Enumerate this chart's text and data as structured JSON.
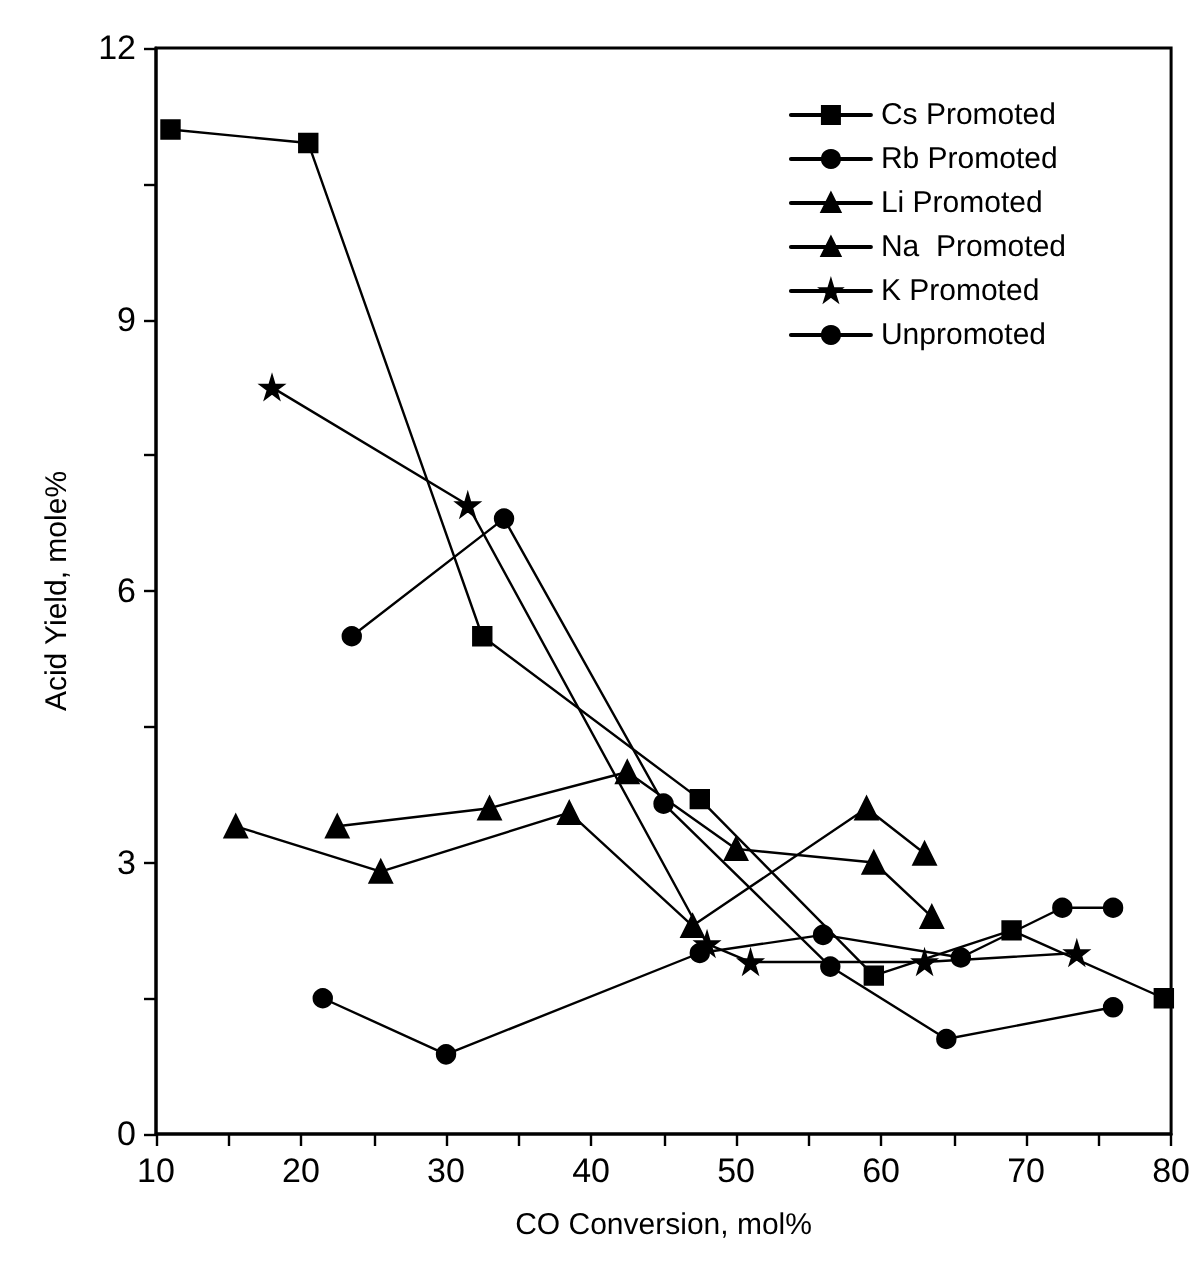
{
  "chart_data": {
    "type": "line",
    "xlabel": "CO Conversion, mol%",
    "ylabel": "Acid Yield, mole%",
    "xlim": [
      10,
      80
    ],
    "ylim": [
      0,
      12
    ],
    "xticks": [
      10,
      {
        "value": 15,
        "label": null
      },
      20,
      {
        "value": 25,
        "label": null
      },
      30,
      {
        "value": 35,
        "label": null
      },
      40,
      {
        "value": 45,
        "label": null
      },
      50,
      {
        "value": 55,
        "label": null
      },
      60,
      {
        "value": 65,
        "label": null
      },
      70,
      {
        "value": 75,
        "label": null
      },
      80
    ],
    "yticks": [
      0,
      {
        "value": 1.5,
        "label": null
      },
      3,
      {
        "value": 4.5,
        "label": null
      },
      6,
      {
        "value": 7.5,
        "label": null
      },
      9,
      {
        "value": 10.5,
        "label": null
      },
      12
    ],
    "grid": false,
    "legend": "top right",
    "line_style": "solid",
    "series": [
      {
        "name": "Cs Promoted",
        "color": "#000000",
        "marker": "square",
        "x": [
          11,
          20.5,
          32.5,
          47.5,
          59.5,
          69,
          79.5
        ],
        "values": [
          11.1,
          10.95,
          5.5,
          3.7,
          1.75,
          2.25,
          1.5
        ]
      },
      {
        "name": "Rb Promoted",
        "color": "#000000",
        "marker": "circle",
        "x": [
          23.5,
          34,
          45,
          56.5,
          64.5,
          76
        ],
        "values": [
          5.5,
          6.8,
          3.65,
          1.85,
          1.05,
          1.4
        ]
      },
      {
        "name": "Li Promoted",
        "color": "#000000",
        "marker": "triangle",
        "x": [
          15.5,
          25.5,
          38.5,
          47,
          59,
          63
        ],
        "values": [
          3.4,
          2.9,
          3.55,
          2.3,
          3.6,
          3.1
        ]
      },
      {
        "name": "Na  Promoted",
        "color": "#000000",
        "marker": "triangle",
        "x": [
          22.5,
          33,
          42.5,
          50,
          59.5,
          63.5
        ],
        "values": [
          3.4,
          3.6,
          4.0,
          3.15,
          3.0,
          2.4
        ]
      },
      {
        "name": "K Promoted",
        "color": "#000000",
        "marker": "star",
        "x": [
          18,
          31.5,
          48,
          51,
          63,
          73.5
        ],
        "values": [
          8.25,
          6.95,
          2.1,
          1.9,
          1.9,
          2.0
        ]
      },
      {
        "name": "Unpromoted",
        "color": "#000000",
        "marker": "circle",
        "x": [
          21.5,
          30,
          47.5,
          56,
          65.5,
          72.5,
          76
        ],
        "values": [
          1.5,
          0.88,
          2.0,
          2.2,
          1.95,
          2.5,
          2.5
        ]
      }
    ]
  }
}
